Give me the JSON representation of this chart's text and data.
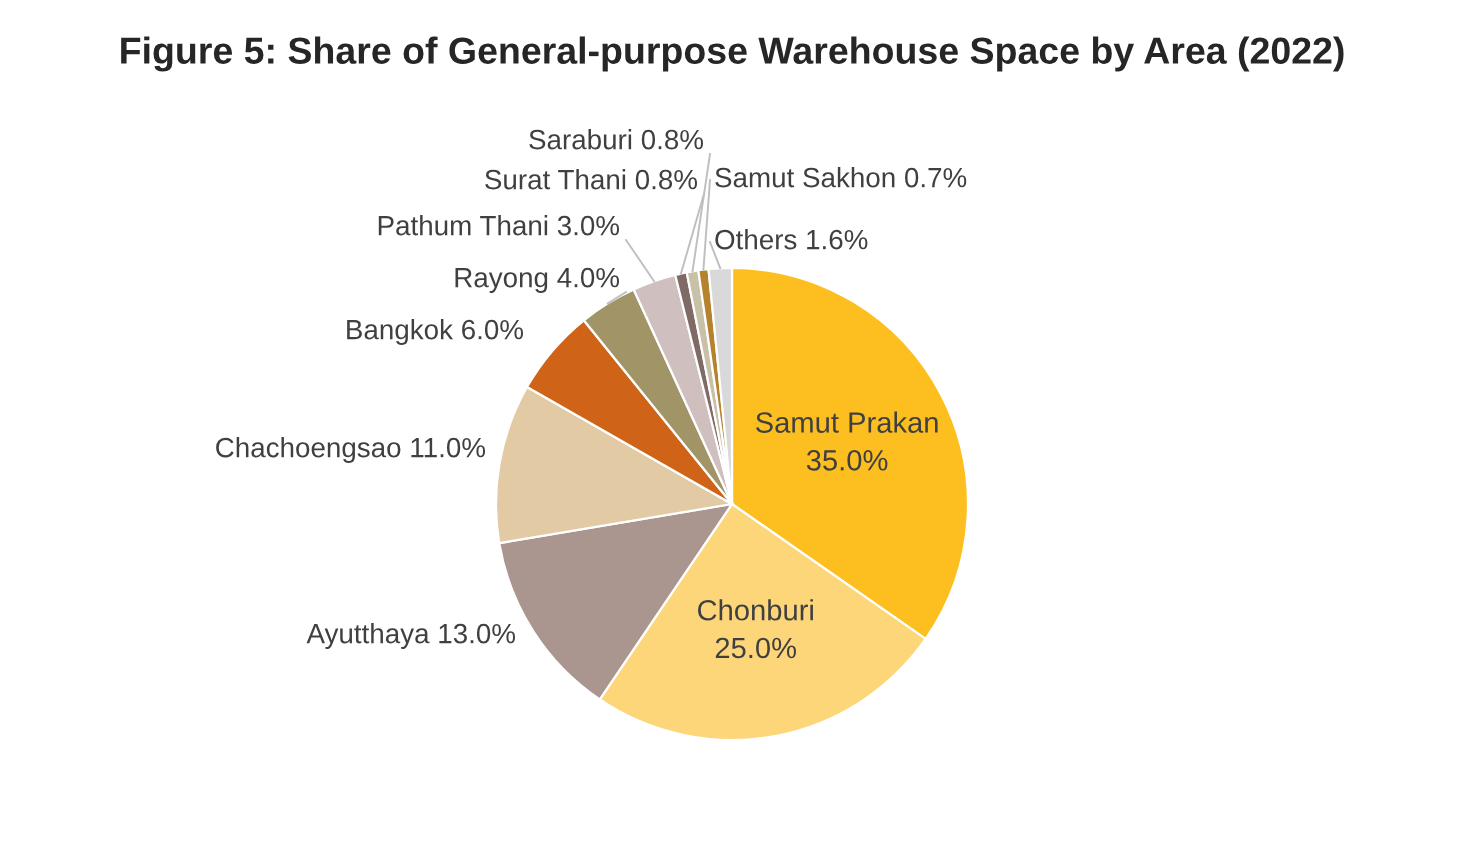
{
  "chart_data": {
    "type": "pie",
    "title": "Figure 5: Share of General-purpose Warehouse Space by Area (2022)",
    "categories": [
      "Samut Prakan",
      "Chonburi",
      "Ayutthaya",
      "Chachoengsao",
      "Bangkok",
      "Rayong",
      "Pathum Thani",
      "Surat Thani",
      "Saraburi",
      "Samut Sakhon",
      "Others"
    ],
    "values": [
      35.0,
      25.0,
      13.0,
      11.0,
      6.0,
      4.0,
      3.0,
      0.8,
      0.8,
      0.7,
      1.6
    ],
    "value_labels": [
      "35.0%",
      "25.0%",
      "13.0%",
      "11.0%",
      "6.0%",
      "4.0%",
      "3.0%",
      "0.8%",
      "0.8%",
      "0.7%",
      "1.6%"
    ],
    "colors": [
      "#fdbf20",
      "#fdd67a",
      "#aa958f",
      "#e2caa4",
      "#cf6418",
      "#a19467",
      "#d0bfbf",
      "#7f6a65",
      "#c9c0a8",
      "#b5832e",
      "#d9d9d9"
    ],
    "legend": false
  }
}
